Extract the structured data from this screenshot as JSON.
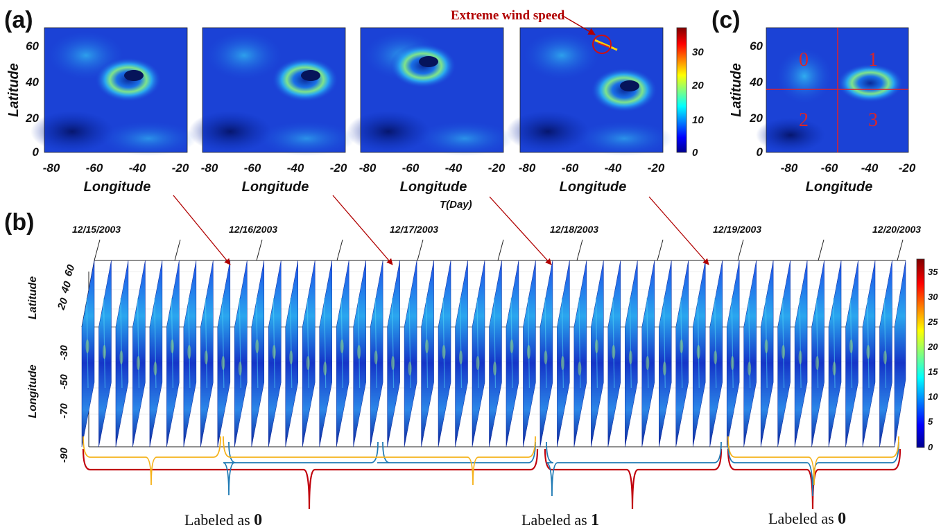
{
  "panels": {
    "a": "(a)",
    "b": "(b)",
    "c": "(c)"
  },
  "annotation": "Extreme wind speed",
  "axes_a": {
    "ylabel": "Latitude",
    "xlabel": "Longitude",
    "yticks": [
      "0",
      "20",
      "40",
      "60"
    ],
    "xticks": [
      "-80",
      "-60",
      "-40",
      "-20"
    ]
  },
  "colorbar_a": {
    "ticks": [
      "0",
      "10",
      "20",
      "30"
    ]
  },
  "colorbar_b": {
    "ticks": [
      "0",
      "5",
      "10",
      "15",
      "20",
      "25",
      "30",
      "35"
    ]
  },
  "panel_c": {
    "quadrants": [
      "0",
      "1",
      "2",
      "3"
    ]
  },
  "panel_b": {
    "time_label": "T(Day)",
    "dates": [
      "12/15/2003",
      "12/16/2003",
      "12/17/2003",
      "12/18/2003",
      "12/19/2003",
      "12/20/2003"
    ],
    "lat_ticks": [
      "20",
      "40",
      "60"
    ],
    "lon_ticks": [
      "-30",
      "-50",
      "-70",
      "-90"
    ],
    "lat_label": "Latitude",
    "lon_label": "Longitude",
    "slice_count": 48
  },
  "labels": [
    {
      "prefix": "Labeled as ",
      "value": "0"
    },
    {
      "prefix": "Labeled as ",
      "value": "1"
    },
    {
      "prefix": "Labeled as ",
      "value": "0"
    }
  ],
  "colors": {
    "annotation": "#b00000",
    "arrow": "#b00000",
    "bracket_red": "#c0000c",
    "bracket_orange": "#f5b21a",
    "bracket_blue": "#1f7ab4",
    "grid_red": "#e0202a"
  }
}
